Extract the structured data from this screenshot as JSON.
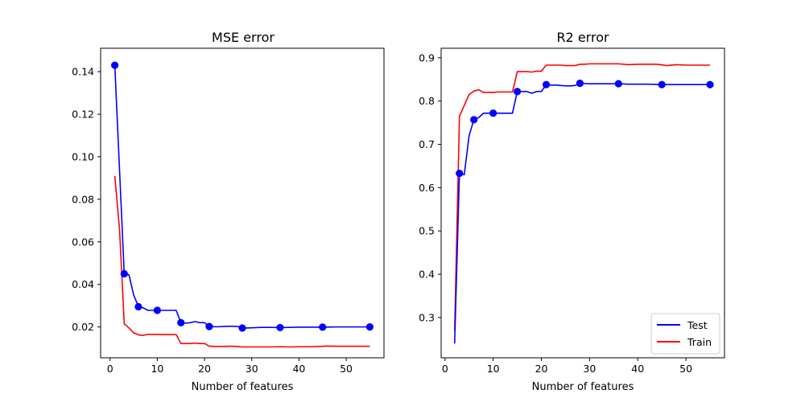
{
  "chart_data": [
    {
      "type": "line",
      "title": "MSE error",
      "xlabel": "Number of features",
      "ylabel": "",
      "xlim": [
        -2,
        58
      ],
      "ylim": [
        0.0055,
        0.151
      ],
      "xticks": [
        0,
        10,
        20,
        30,
        40,
        50
      ],
      "yticks": [
        0.02,
        0.04,
        0.06,
        0.08,
        0.1,
        0.12,
        0.14
      ],
      "ytick_labels": [
        "0.02",
        "0.04",
        "0.06",
        "0.08",
        "0.10",
        "0.12",
        "0.14"
      ],
      "series": [
        {
          "name": "Test",
          "color": "#0000ff",
          "x": [
            1,
            3,
            4,
            5,
            6,
            7,
            8,
            9,
            10,
            11,
            12,
            13,
            14,
            15,
            16,
            17,
            18,
            19,
            20,
            21,
            22,
            23,
            24,
            25,
            26,
            27,
            28,
            29,
            30,
            32,
            34,
            36,
            38,
            40,
            42,
            45,
            48,
            50,
            52,
            55
          ],
          "y": [
            0.143,
            0.045,
            0.0445,
            0.035,
            0.0295,
            0.029,
            0.0278,
            0.0278,
            0.0278,
            0.0278,
            0.0278,
            0.0278,
            0.0278,
            0.022,
            0.0218,
            0.022,
            0.0225,
            0.022,
            0.022,
            0.0202,
            0.0201,
            0.0201,
            0.0202,
            0.0203,
            0.0203,
            0.0202,
            0.0195,
            0.0195,
            0.0196,
            0.0198,
            0.0198,
            0.0197,
            0.0198,
            0.0199,
            0.0199,
            0.0199,
            0.02,
            0.02,
            0.02,
            0.02
          ],
          "markers_at": [
            1,
            3,
            6,
            10,
            15,
            21,
            28,
            36,
            45,
            55
          ],
          "markers_y": [
            0.143,
            0.045,
            0.0295,
            0.0278,
            0.022,
            0.0202,
            0.0195,
            0.0197,
            0.0199,
            0.02
          ]
        },
        {
          "name": "Train",
          "color": "#ff0000",
          "x": [
            1,
            2,
            3,
            4,
            5,
            6,
            7,
            8,
            9,
            10,
            11,
            12,
            13,
            14,
            15,
            16,
            17,
            18,
            19,
            20,
            21,
            22,
            23,
            24,
            25,
            26,
            27,
            28,
            29,
            30,
            32,
            34,
            36,
            38,
            40,
            42,
            44,
            46,
            48,
            50,
            52,
            55
          ],
          "y": [
            0.091,
            0.066,
            0.0215,
            0.0195,
            0.0172,
            0.0163,
            0.016,
            0.0165,
            0.0165,
            0.0165,
            0.0164,
            0.0164,
            0.0164,
            0.0164,
            0.0122,
            0.0122,
            0.0122,
            0.0124,
            0.0122,
            0.0122,
            0.011,
            0.0108,
            0.0108,
            0.0108,
            0.0109,
            0.0109,
            0.0108,
            0.0106,
            0.0106,
            0.0106,
            0.0106,
            0.0106,
            0.0107,
            0.0106,
            0.0107,
            0.0107,
            0.0108,
            0.011,
            0.0109,
            0.0109,
            0.0109,
            0.0109
          ]
        }
      ]
    },
    {
      "type": "line",
      "title": "R2 error",
      "xlabel": "Number of features",
      "ylabel": "",
      "xlim": [
        -0.8,
        58
      ],
      "ylim": [
        0.207,
        0.922
      ],
      "xticks": [
        0,
        10,
        20,
        30,
        40,
        50
      ],
      "yticks": [
        0.3,
        0.4,
        0.5,
        0.6,
        0.7,
        0.8,
        0.9
      ],
      "ytick_labels": [
        "0.3",
        "0.4",
        "0.5",
        "0.6",
        "0.7",
        "0.8",
        "0.9"
      ],
      "legend": {
        "location": "lower-right",
        "entries": [
          "Test",
          "Train"
        ]
      },
      "series": [
        {
          "name": "Test",
          "color": "#0000ff",
          "x": [
            2,
            3,
            4,
            5,
            6,
            7,
            8,
            9,
            10,
            11,
            12,
            13,
            14,
            15,
            16,
            17,
            18,
            19,
            20,
            21,
            22,
            23,
            24,
            25,
            26,
            27,
            28,
            30,
            32,
            34,
            36,
            38,
            40,
            42,
            45,
            48,
            50,
            52,
            55
          ],
          "y": [
            0.24,
            0.633,
            0.63,
            0.72,
            0.757,
            0.762,
            0.772,
            0.772,
            0.772,
            0.772,
            0.772,
            0.772,
            0.772,
            0.822,
            0.822,
            0.822,
            0.818,
            0.822,
            0.822,
            0.838,
            0.837,
            0.837,
            0.836,
            0.835,
            0.835,
            0.836,
            0.841,
            0.84,
            0.84,
            0.84,
            0.84,
            0.839,
            0.839,
            0.839,
            0.838,
            0.838,
            0.838,
            0.838,
            0.838
          ],
          "markers_at": [
            3,
            6,
            10,
            15,
            21,
            28,
            36,
            45,
            55
          ],
          "markers_y": [
            0.633,
            0.757,
            0.772,
            0.822,
            0.838,
            0.841,
            0.84,
            0.838,
            0.838
          ]
        },
        {
          "name": "Train",
          "color": "#ff0000",
          "x": [
            2,
            3,
            4,
            5,
            6,
            7,
            8,
            9,
            10,
            11,
            12,
            13,
            14,
            15,
            16,
            17,
            18,
            19,
            20,
            21,
            22,
            23,
            24,
            25,
            26,
            27,
            28,
            29,
            30,
            32,
            34,
            36,
            38,
            40,
            42,
            44,
            46,
            48,
            50,
            52,
            55
          ],
          "y": [
            0.27,
            0.765,
            0.79,
            0.815,
            0.823,
            0.826,
            0.82,
            0.82,
            0.82,
            0.821,
            0.821,
            0.821,
            0.821,
            0.868,
            0.868,
            0.868,
            0.867,
            0.869,
            0.869,
            0.883,
            0.883,
            0.883,
            0.883,
            0.882,
            0.882,
            0.882,
            0.885,
            0.885,
            0.886,
            0.886,
            0.886,
            0.886,
            0.884,
            0.885,
            0.885,
            0.885,
            0.882,
            0.884,
            0.883,
            0.883,
            0.883
          ]
        }
      ]
    }
  ]
}
